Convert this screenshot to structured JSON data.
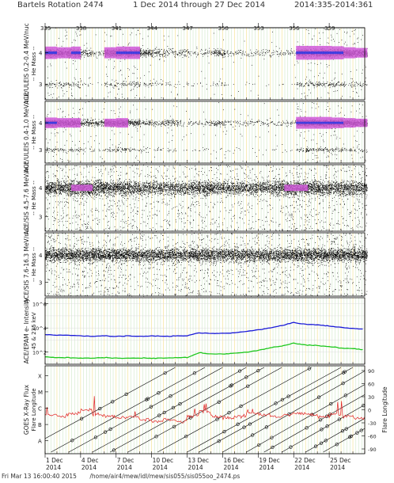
{
  "header": {
    "rotation": "Bartels Rotation 2474",
    "date_range": "1 Dec 2014 through 27 Dec 2014",
    "doy_range": "2014:335-2014:361"
  },
  "footer": {
    "timestamp": "Fri Mar 13 16:00:40 2015",
    "path": "/home/air4/mew/idl/mew/sis055/sis055oo_2474.ps"
  },
  "colors": {
    "axis": "#000000",
    "grid_day": "#f2e08a",
    "grid_minor": "#cfe8c8",
    "density_low": "#000000",
    "density_mid": "#d05ad8",
    "density_high": "#3e3ee0",
    "epam_high": "#1a1ad8",
    "epam_low": "#1ec81e",
    "xray": "#e02020",
    "flare_line": "#000000"
  },
  "chart_data": [
    {
      "type": "scatter",
      "panel": 1,
      "ylabel": "ACE/ULEIS 0.2-0.4 MeV/nuc",
      "ylabel2": "-- He Mass --",
      "yticks": [
        "3",
        "4"
      ],
      "ylim": [
        2.5,
        4.8
      ],
      "bands": [
        {
          "center": 4.0,
          "label": "4He"
        },
        {
          "center": 3.0,
          "label": "3He"
        }
      ],
      "intensity_by_day": [
        0.9,
        0.8,
        0.9,
        0.3,
        0.1,
        0.8,
        0.9,
        0.9,
        0.5,
        0.3,
        0.2,
        0.2,
        0.1,
        0.15,
        0.4,
        0.1,
        0.1,
        0.1,
        0.1,
        0.1,
        0.1,
        1.0,
        1.0,
        1.0,
        0.95,
        0.8,
        0.7
      ]
    },
    {
      "type": "scatter",
      "panel": 2,
      "ylabel": "ACE/ULEIS 0.4-1.0 MeV/nuc",
      "ylabel2": "-- He Mass --",
      "yticks": [
        "3",
        "4"
      ],
      "ylim": [
        2.5,
        4.8
      ],
      "bands": [
        {
          "center": 4.0,
          "label": "4He"
        },
        {
          "center": 3.0,
          "label": "3He"
        }
      ],
      "intensity_by_day": [
        0.9,
        0.8,
        0.8,
        0.4,
        0.35,
        0.7,
        0.8,
        0.5,
        0.25,
        0.2,
        0.3,
        0.1,
        0.1,
        0.15,
        0.25,
        0.1,
        0.1,
        0.1,
        0.1,
        0.1,
        0.1,
        1.0,
        1.0,
        1.0,
        0.9,
        0.8,
        0.7
      ]
    },
    {
      "type": "scatter",
      "panel": 3,
      "ylabel": "ACE/SIS 4.5-7.6 MeV/nuc",
      "ylabel2": "-- He Mass --",
      "yticks": [
        "3",
        "4"
      ],
      "ylim": [
        2.5,
        4.8
      ],
      "bands": [
        {
          "center": 4.0,
          "label": "4He"
        }
      ],
      "intensity_by_day": [
        0.8,
        0.8,
        0.9,
        0.9,
        0.8,
        0.8,
        0.8,
        0.7,
        0.6,
        0.6,
        0.6,
        0.6,
        0.7,
        0.8,
        0.6,
        0.6,
        0.6,
        0.6,
        0.6,
        0.7,
        0.9,
        0.9,
        0.8,
        0.7,
        0.7,
        0.7,
        0.7
      ]
    },
    {
      "type": "scatter",
      "panel": 4,
      "ylabel": "ACE/SIS 7.6-16.3 MeV/nuc",
      "ylabel2": "-- He Mass --",
      "yticks": [
        "3",
        "4"
      ],
      "ylim": [
        2.5,
        4.8
      ],
      "bands": [
        {
          "center": 4.0,
          "label": "4He"
        }
      ],
      "intensity_by_day": [
        0.8,
        0.8,
        0.8,
        0.8,
        0.8,
        0.8,
        0.8,
        0.7,
        0.7,
        0.7,
        0.7,
        0.7,
        0.8,
        0.8,
        0.7,
        0.7,
        0.7,
        0.7,
        0.7,
        0.7,
        0.8,
        0.8,
        0.8,
        0.8,
        0.8,
        0.8,
        0.8
      ]
    },
    {
      "type": "line",
      "panel": 5,
      "ylabel": "ACE/EPAM e- Intensity",
      "ylabel2": "45 & 235 keV",
      "yscale": "log",
      "yticks": [
        "10^2",
        "10^4",
        "10^6"
      ],
      "ylim_log10": [
        1,
        6.5
      ],
      "x_days": [
        1,
        2,
        3,
        4,
        5,
        6,
        7,
        8,
        9,
        10,
        11,
        12,
        13,
        14,
        15,
        16,
        17,
        18,
        19,
        20,
        21,
        22,
        23,
        24,
        25,
        26,
        27,
        28
      ],
      "series": [
        {
          "name": "45 keV",
          "color": "#1a1ad8",
          "log10_values": [
            3.45,
            3.4,
            3.4,
            3.35,
            3.3,
            3.35,
            3.3,
            3.35,
            3.3,
            3.35,
            3.3,
            3.35,
            3.35,
            3.6,
            3.55,
            3.55,
            3.6,
            3.7,
            3.85,
            4.0,
            4.2,
            4.45,
            4.3,
            4.25,
            4.15,
            4.05,
            3.95,
            3.9
          ]
        },
        {
          "name": "235 keV",
          "color": "#1ec81e",
          "log10_values": [
            1.6,
            1.55,
            1.55,
            1.5,
            1.5,
            1.55,
            1.5,
            1.5,
            1.5,
            1.5,
            1.5,
            1.55,
            1.55,
            1.95,
            1.85,
            1.85,
            1.9,
            2.0,
            2.15,
            2.35,
            2.5,
            2.75,
            2.6,
            2.55,
            2.45,
            2.35,
            2.3,
            2.2
          ]
        }
      ]
    },
    {
      "type": "line",
      "panel": 6,
      "ylabel": "GOES X-Ray Flux",
      "ylabel2": "Flare Longitude",
      "yticks_left": [
        "A",
        "B",
        "C",
        "M",
        "X"
      ],
      "yticks_right": [
        "90",
        "60",
        "30",
        "0",
        "-30",
        "-60",
        "-90"
      ],
      "xray_daily_class_level": [
        2.6,
        2.5,
        2.7,
        2.9,
        2.6,
        2.5,
        2.4,
        2.5,
        2.3,
        2.2,
        2.3,
        2.2,
        2.5,
        2.8,
        2.5,
        2.4,
        2.5,
        2.7,
        2.6,
        2.5,
        2.6,
        2.7,
        2.6,
        2.5,
        2.6,
        2.5,
        2.4
      ],
      "flare_tracks_start_day": [
        -2,
        0.5,
        2,
        4,
        5.5,
        7,
        9.5,
        12,
        13,
        15,
        17,
        18.5,
        20,
        22,
        23.5
      ]
    }
  ],
  "x_axis": {
    "doy_ticks": [
      "335",
      "338",
      "341",
      "344",
      "347",
      "350",
      "353",
      "356",
      "359"
    ],
    "date_ticks": [
      "1 Dec",
      "4 Dec",
      "7 Dec",
      "10 Dec",
      "13 Dec",
      "16 Dec",
      "19 Dec",
      "22 Dec",
      "25 Dec"
    ],
    "year_label": "2014",
    "days": 27
  }
}
